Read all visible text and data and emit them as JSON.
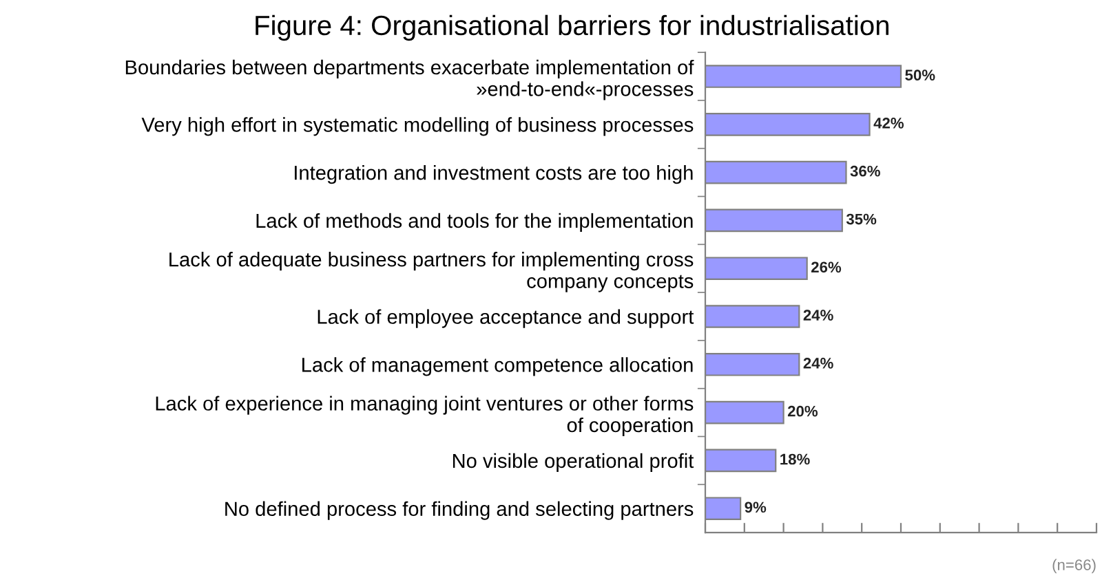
{
  "chart_data": {
    "type": "bar",
    "orientation": "horizontal",
    "title": "Figure 4: Organisational barriers for industrialisation",
    "categories": [
      "Boundaries between departments exacerbate implementation of\n»end-to-end«-processes",
      "Very high effort in systematic modelling of business processes",
      "Integration and investment costs are too high",
      "Lack of methods and tools for the implementation",
      "Lack of adequate business partners for implementing cross\ncompany concepts",
      "Lack of employee acceptance and support",
      "Lack of management competence allocation",
      "Lack of experience in managing joint ventures or other forms\nof cooperation",
      "No visible operational profit",
      "No defined process for finding and selecting partners"
    ],
    "values": [
      50,
      42,
      36,
      35,
      26,
      24,
      24,
      20,
      18,
      9
    ],
    "value_labels": [
      "50%",
      "42%",
      "36%",
      "35%",
      "26%",
      "24%",
      "24%",
      "20%",
      "18%",
      "9%"
    ],
    "color": "#9999ff",
    "xlim": [
      0,
      100
    ],
    "xticks": [
      {
        "value": 0,
        "label": null
      },
      {
        "value": 10,
        "label": null
      },
      {
        "value": 20,
        "label": null
      },
      {
        "value": 30,
        "label": null
      },
      {
        "value": 40,
        "label": null
      },
      {
        "value": 50,
        "label": null
      },
      {
        "value": 60,
        "label": null
      },
      {
        "value": 70,
        "label": null
      },
      {
        "value": 80,
        "label": null
      },
      {
        "value": 90,
        "label": null
      },
      {
        "value": 100,
        "label": null
      }
    ],
    "tick_labels": "y",
    "grid": false,
    "legend": false,
    "annotations": [
      "(n=66)"
    ]
  }
}
